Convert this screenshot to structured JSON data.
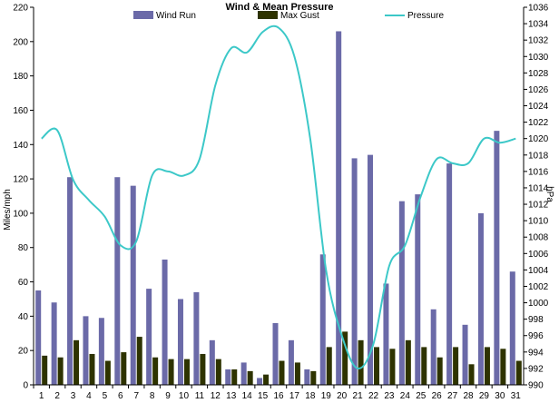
{
  "chart_data": {
    "type": "bar",
    "title": "Wind & Mean Pressure",
    "ylabel": "Miles/mph",
    "y2label": "hPa",
    "ylim": [
      0,
      220
    ],
    "y2lim": [
      990,
      1036
    ],
    "categories": [
      "1",
      "2",
      "3",
      "4",
      "5",
      "6",
      "7",
      "8",
      "9",
      "10",
      "11",
      "12",
      "13",
      "14",
      "15",
      "16",
      "17",
      "18",
      "19",
      "20",
      "21",
      "22",
      "23",
      "24",
      "25",
      "26",
      "27",
      "28",
      "29",
      "30",
      "31"
    ],
    "grid": false,
    "legend_position": "top",
    "series": [
      {
        "name": "Wind Run",
        "kind": "bar",
        "axis": "left",
        "color": "#6b6aa8",
        "values": [
          55,
          48,
          121,
          40,
          39,
          121,
          116,
          56,
          73,
          50,
          54,
          26,
          9,
          13,
          4,
          36,
          26,
          9,
          76,
          206,
          132,
          134,
          59,
          107,
          111,
          44,
          129,
          35,
          100,
          148,
          66
        ]
      },
      {
        "name": "Max Gust",
        "kind": "bar",
        "axis": "left",
        "color": "#2e3300",
        "values": [
          17,
          16,
          26,
          18,
          14,
          19,
          28,
          16,
          15,
          15,
          18,
          15,
          9,
          8,
          6,
          14,
          13,
          8,
          22,
          31,
          26,
          22,
          21,
          26,
          22,
          16,
          22,
          12,
          22,
          21,
          14
        ]
      },
      {
        "name": "Pressure",
        "kind": "line",
        "axis": "right",
        "color": "#3cc8c8",
        "values": [
          1020,
          1021,
          1015,
          1012.5,
          1010.5,
          1007,
          1007.5,
          1015.5,
          1016,
          1015.5,
          1017.5,
          1026.5,
          1031,
          1030.5,
          1033,
          1033.5,
          1030,
          1020,
          1004,
          996,
          992,
          995,
          1004.5,
          1007,
          1013,
          1017.5,
          1017,
          1017,
          1020,
          1019.5,
          1020
        ]
      }
    ],
    "left_ticks": [
      "0",
      "20",
      "40",
      "60",
      "80",
      "100",
      "120",
      "140",
      "160",
      "180",
      "200",
      "220"
    ],
    "right_ticks": [
      "990",
      "992",
      "994",
      "996",
      "998",
      "1000",
      "1002",
      "1004",
      "1006",
      "1008",
      "1010",
      "1012",
      "1014",
      "1016",
      "1018",
      "1020",
      "1022",
      "1024",
      "1026",
      "1028",
      "1030",
      "1032",
      "1034",
      "1036"
    ]
  }
}
